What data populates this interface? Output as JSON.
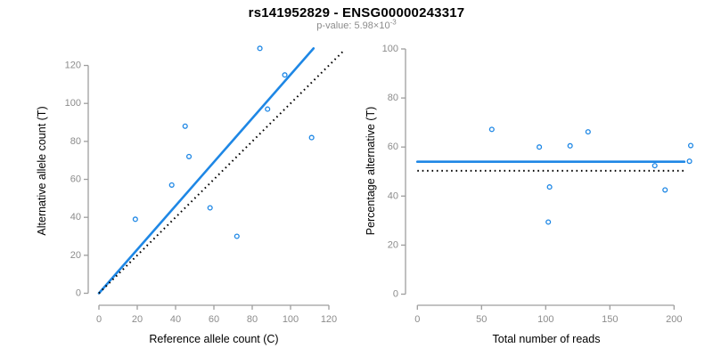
{
  "figure": {
    "title": "rs141952829 - ENSG00000243317",
    "subtitle": {
      "prefix": "p-value: 5.98×10",
      "exponent": "-3"
    }
  },
  "colors": {
    "accent_blue": "#1E87E5",
    "line_black": "#000000",
    "axis_gray": "#9E9E9E",
    "tick_label_gray": "#8C8C8C",
    "axis_title_black": "#000000",
    "background": "#FFFFFF"
  },
  "chart_data": [
    {
      "type": "scatter",
      "name": "allele-count-scatter",
      "xlabel": "Reference allele count (C)",
      "ylabel": "Alternative allele count (T)",
      "x_ticks": [
        0,
        20,
        40,
        60,
        80,
        100,
        120
      ],
      "y_ticks": [
        0,
        20,
        40,
        60,
        80,
        100,
        120
      ],
      "xlim": [
        0,
        128
      ],
      "ylim": [
        0,
        134
      ],
      "grid": false,
      "points": [
        [
          19,
          39
        ],
        [
          38,
          57
        ],
        [
          45,
          88
        ],
        [
          47,
          72
        ],
        [
          58,
          45
        ],
        [
          72,
          30
        ],
        [
          84,
          129
        ],
        [
          88,
          97
        ],
        [
          97,
          115
        ],
        [
          111,
          82
        ]
      ],
      "lines": [
        {
          "name": "regression-line",
          "style": "solid",
          "color": "accent_blue",
          "x1": 0,
          "y1": 0,
          "x2": 112,
          "y2": 129
        },
        {
          "name": "identity-line",
          "style": "dotted",
          "color": "line_black",
          "x1": 0,
          "y1": 0,
          "x2": 128,
          "y2": 128
        }
      ]
    },
    {
      "type": "scatter",
      "name": "percentage-vs-reads-scatter",
      "xlabel": "Total number of reads",
      "ylabel": "Percentage alternative (T)",
      "x_ticks": [
        0,
        50,
        100,
        150,
        200
      ],
      "y_ticks": [
        0,
        20,
        40,
        60,
        80,
        100
      ],
      "xlim": [
        0,
        209
      ],
      "ylim": [
        0,
        100
      ],
      "grid": false,
      "points": [
        [
          58,
          67.2
        ],
        [
          95,
          60.0
        ],
        [
          102,
          29.4
        ],
        [
          103,
          43.7
        ],
        [
          119,
          60.5
        ],
        [
          133,
          66.2
        ],
        [
          185,
          52.4
        ],
        [
          193,
          42.5
        ],
        [
          212,
          54.2
        ],
        [
          213,
          60.6
        ]
      ],
      "lines": [
        {
          "name": "mean-percentage-line",
          "style": "solid",
          "color": "accent_blue",
          "x1": 0,
          "y1": 54,
          "x2": 208,
          "y2": 54
        },
        {
          "name": "fifty-percent-line",
          "style": "dotted",
          "color": "line_black",
          "x1": 0,
          "y1": 50.3,
          "x2": 208,
          "y2": 50.3
        }
      ]
    }
  ]
}
